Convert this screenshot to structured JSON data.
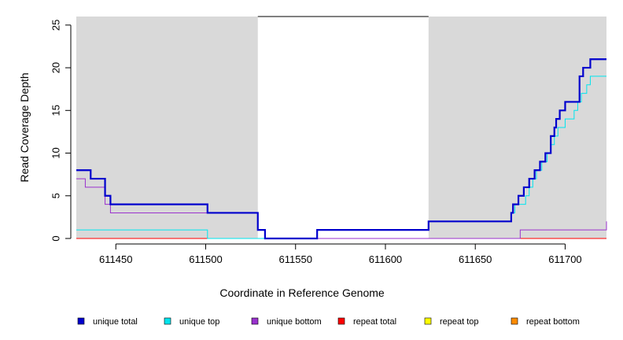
{
  "chart_data": {
    "type": "line",
    "title": "",
    "xlabel": "Coordinate in Reference Genome",
    "ylabel": "Read Coverage Depth",
    "xlim": [
      611428,
      611723
    ],
    "ylim": [
      0,
      26
    ],
    "xticks": [
      611450,
      611500,
      611550,
      611600,
      611650,
      611700
    ],
    "yticks": [
      0,
      5,
      10,
      15,
      20,
      25
    ],
    "grid": false,
    "shaded_regions": [
      {
        "x0": 611428,
        "x1": 611529,
        "color": "#d9d9d9"
      },
      {
        "x0": 611624,
        "x1": 611723,
        "color": "#d9d9d9"
      }
    ],
    "series": [
      {
        "name": "unique total",
        "color": "#0000cd",
        "width": 2.2,
        "x": [
          611428,
          611436,
          611444,
          611447,
          611501,
          611529,
          611533,
          611562,
          611624,
          611670,
          611671,
          611674,
          611677,
          611680,
          611683,
          611684,
          611686,
          611689,
          611692,
          611694,
          611695,
          611697,
          611700,
          611708,
          611709,
          611710,
          611714,
          611723
        ],
        "y": [
          8,
          7,
          5,
          4,
          3,
          1,
          0,
          1,
          2,
          3,
          4,
          5,
          6,
          7,
          8,
          8,
          9,
          10,
          12,
          13,
          14,
          15,
          16,
          19,
          19,
          20,
          21,
          21
        ]
      },
      {
        "name": "unique top",
        "color": "#00e5ee",
        "width": 1,
        "x": [
          611428,
          611501,
          611562,
          611624,
          611670,
          611671,
          611672,
          611678,
          611680,
          611682,
          611684,
          611687,
          611690,
          611692,
          611694,
          611696,
          611700,
          611705,
          611707,
          611709,
          611712,
          611714,
          611723
        ],
        "y": [
          1,
          0,
          1,
          2,
          3,
          3,
          4,
          5,
          6,
          7,
          8,
          9,
          10,
          11,
          12,
          13,
          14,
          15,
          16,
          17,
          18,
          19,
          19
        ]
      },
      {
        "name": "unique bottom",
        "color": "#9a32cd",
        "width": 1,
        "x": [
          611428,
          611433,
          611444,
          611447,
          611501,
          611529,
          611533,
          611672,
          611675,
          611723
        ],
        "y": [
          7,
          6,
          4,
          3,
          3,
          1,
          0,
          0,
          1,
          2
        ]
      },
      {
        "name": "repeat total",
        "color": "#ff0000",
        "width": 1,
        "x": [
          611428,
          611723
        ],
        "y": [
          0,
          0
        ]
      },
      {
        "name": "repeat top",
        "color": "#ffff00",
        "width": 1,
        "x": [
          611428,
          611723
        ],
        "y": [
          0,
          0
        ]
      },
      {
        "name": "repeat bottom",
        "color": "#ff8c00",
        "width": 1,
        "x": [
          611428,
          611723
        ],
        "y": [
          0,
          0
        ]
      }
    ],
    "legend_position": "bottom"
  }
}
